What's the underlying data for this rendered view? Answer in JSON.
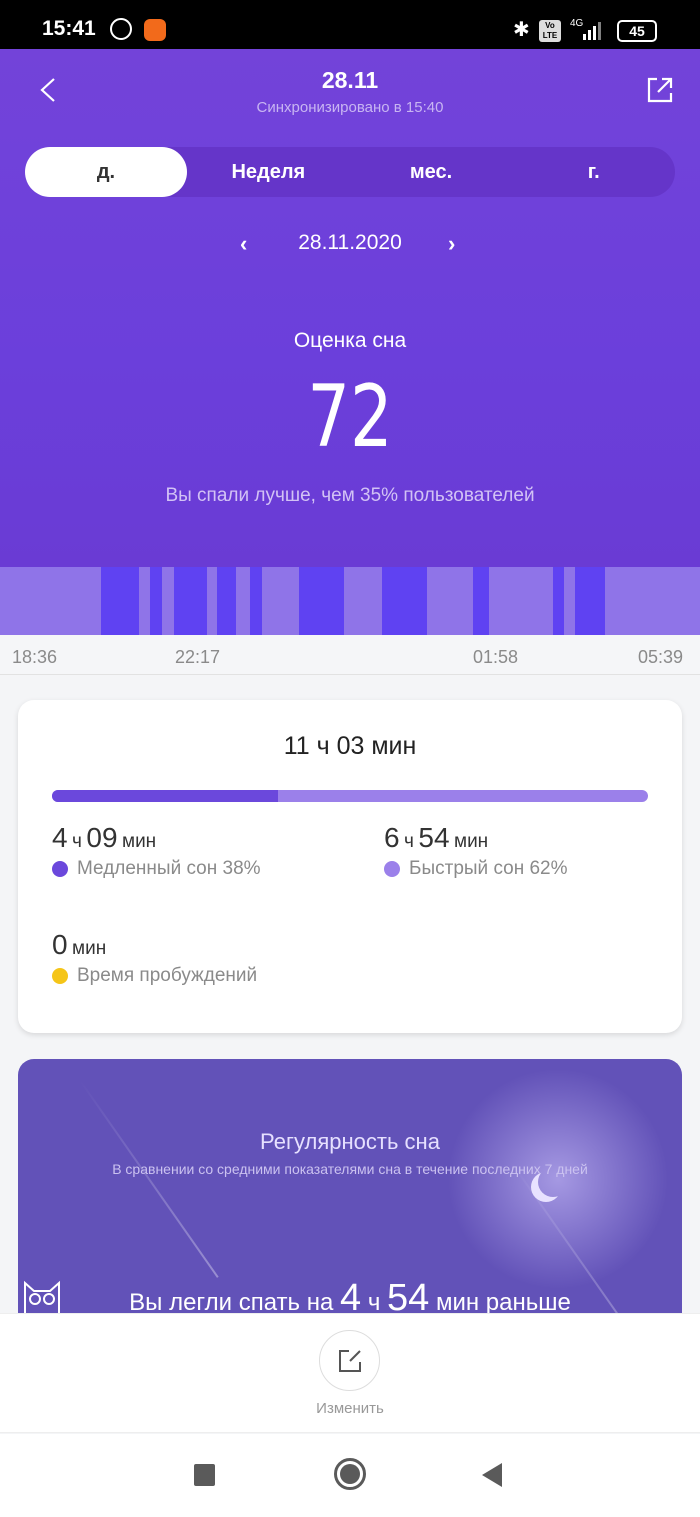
{
  "status_bar": {
    "time": "15:41",
    "battery": "45",
    "network": "4G",
    "volte": "Vo LTE"
  },
  "header": {
    "title": "28.11",
    "subtitle": "Синхронизировано в 15:40"
  },
  "tabs": [
    {
      "label": "д.",
      "active": true
    },
    {
      "label": "Неделя"
    },
    {
      "label": "мес."
    },
    {
      "label": "г."
    }
  ],
  "date_nav": {
    "date": "28.11.2020",
    "prev": "‹",
    "next": "›"
  },
  "score": {
    "label": "Оценка сна",
    "value": "72",
    "compare": "Вы спали лучше, чем 35% пользователей"
  },
  "chart_data": {
    "type": "timeline",
    "start": "18:36",
    "end": "05:39",
    "tick_labels": [
      "18:36",
      "22:17",
      "01:58",
      "05:39"
    ],
    "colors": {
      "light": "#8f74e8",
      "deep": "#5f42f2"
    },
    "deep_segments": [
      [
        "20:12",
        "20:48"
      ],
      [
        "20:58",
        "21:09"
      ],
      [
        "21:21",
        "21:52"
      ],
      [
        "22:02",
        "22:20"
      ],
      [
        "22:33",
        "22:44"
      ],
      [
        "23:19",
        "00:02"
      ],
      [
        "00:38",
        "01:20"
      ],
      [
        "02:04",
        "02:19"
      ],
      [
        "03:20",
        "03:30"
      ],
      [
        "03:41",
        "04:09"
      ]
    ]
  },
  "summary": {
    "total": "11 ч 03 мин",
    "deep_fraction": 0.38,
    "deep": {
      "h": "4",
      "hu": "ч",
      "m": "09",
      "mu": "мин",
      "label": "Медленный сон 38%",
      "color": "#6b48dc"
    },
    "rem": {
      "h": "6",
      "hu": "ч",
      "m": "54",
      "mu": "мин",
      "label": "Быстрый сон 62%",
      "color": "#9b80ea"
    },
    "awake": {
      "m": "0",
      "mu": "мин",
      "label": "Время пробуждений",
      "color": "#f5c518"
    }
  },
  "regularity": {
    "title": "Регулярность сна",
    "subtitle": "В сравнении со средними показателями сна в течение последних 7 дней",
    "msg_pre": "Вы легли спать на",
    "h": "4",
    "hu": "ч",
    "m": "54",
    "msg_post": "мин раньше"
  },
  "bottom": {
    "edit_label": "Изменить"
  }
}
